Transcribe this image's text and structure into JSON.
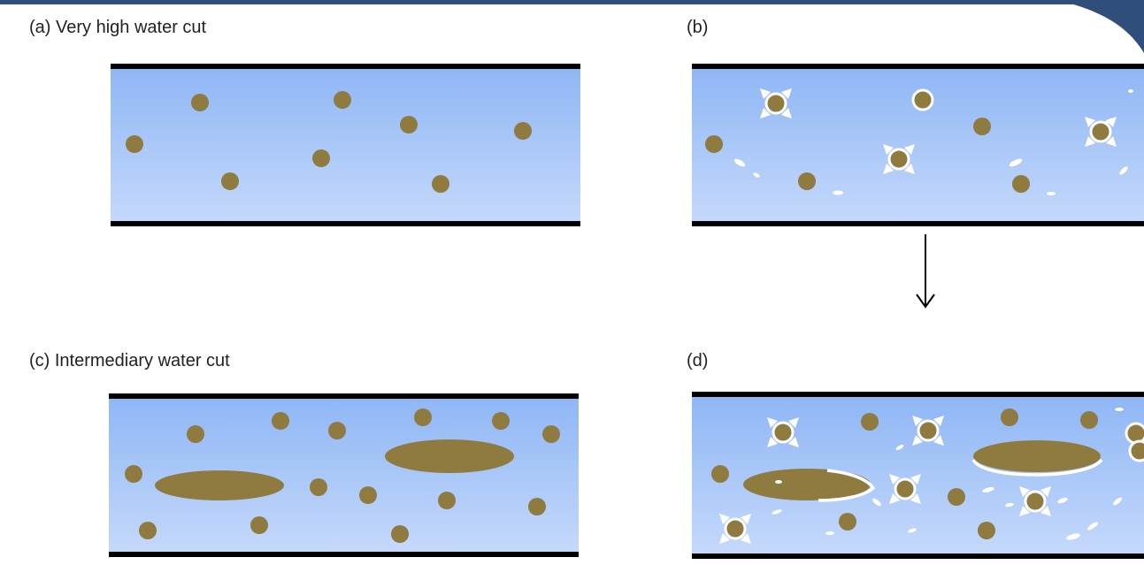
{
  "panels": {
    "a": {
      "label": "(a) Very high water cut"
    },
    "b": {
      "label": "(b)"
    },
    "c": {
      "label": "(c) Intermediary water cut"
    },
    "d": {
      "label": "(d)"
    }
  },
  "colors": {
    "water_top": "#8fb6f5",
    "water_bottom": "#c5d9fb",
    "oil": "#8f7a3f",
    "pipe_wall": "#000000",
    "gas": "#ffffff",
    "frame_accent": "#2f4f7a"
  },
  "icons": {
    "flow_arrow": "down-arrow-icon",
    "gas_bubble": "gas-bubble-icon",
    "oil_droplet": "oil-droplet-icon",
    "burst_marker": "bubble-burst-icon"
  }
}
